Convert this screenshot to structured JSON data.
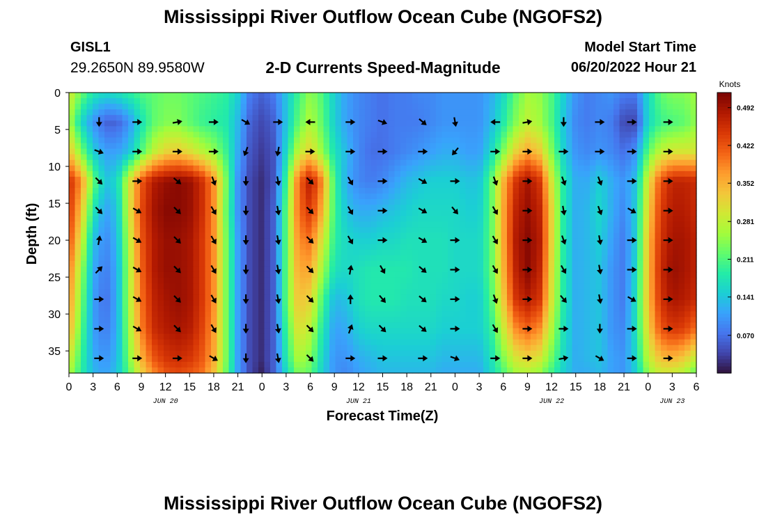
{
  "page": {
    "title": "Mississippi River Outflow Ocean Cube (NGOFS2)",
    "title_repeat": "Mississippi River Outflow Ocean Cube (NGOFS2)"
  },
  "header": {
    "station_id": "GISL1",
    "coordinates": "29.2650N  89.9580W",
    "subtitle": "2-D Currents Speed-Magnitude",
    "start_label": "Model Start Time",
    "start_value": "06/20/2022 Hour 21"
  },
  "chart_data": {
    "type": "heatmap",
    "title": "2-D Currents Speed-Magnitude",
    "xlabel": "Forecast Time(Z)",
    "ylabel": "Depth (ft)",
    "xlim": [
      0,
      78
    ],
    "ylim": [
      0,
      38
    ],
    "y_inverted": true,
    "x_tick_values": [
      0,
      3,
      6,
      9,
      12,
      15,
      18,
      21,
      24,
      27,
      30,
      33,
      36,
      39,
      42,
      45,
      48,
      51,
      54,
      57,
      60,
      63,
      66,
      69,
      72,
      75,
      78
    ],
    "x_tick_labels": [
      "0",
      "3",
      "6",
      "9",
      "12",
      "15",
      "18",
      "21",
      "0",
      "3",
      "6",
      "9",
      "12",
      "15",
      "18",
      "21",
      "0",
      "3",
      "6",
      "9",
      "12",
      "15",
      "18",
      "21",
      "0",
      "3",
      "6"
    ],
    "day_labels": [
      {
        "x": 12,
        "label": "JUN 20"
      },
      {
        "x": 36,
        "label": "JUN 21"
      },
      {
        "x": 60,
        "label": "JUN 22"
      },
      {
        "x": 75,
        "label": "JUN 23"
      }
    ],
    "y_tick_values": [
      0,
      5,
      10,
      15,
      20,
      25,
      30,
      35
    ],
    "y_tick_labels": [
      "0",
      "5",
      "10",
      "15",
      "20",
      "25",
      "30",
      "35"
    ],
    "colorbar": {
      "title": "Knots",
      "min": 0.0,
      "max": 0.52,
      "tick_values": [
        0.07,
        0.141,
        0.211,
        0.281,
        0.352,
        0.422,
        0.492
      ],
      "tick_labels": [
        "0.070",
        "0.141",
        "0.211",
        "0.281",
        "0.352",
        "0.422",
        "0.492"
      ]
    },
    "grid": false,
    "speed_field": {
      "x": [
        0,
        1.5,
        3,
        4.5,
        6,
        7.5,
        9,
        10.5,
        12,
        13.5,
        15,
        16.5,
        18,
        19.5,
        21,
        22.5,
        24,
        25.5,
        27,
        28.5,
        30,
        31.5,
        33,
        34.5,
        36,
        37.5,
        39,
        40.5,
        42,
        43.5,
        45,
        46.5,
        48,
        49.5,
        51,
        52.5,
        54,
        55.5,
        57,
        58.5,
        60,
        61.5,
        63,
        64.5,
        66,
        67.5,
        69,
        70.5,
        72,
        73.5,
        75,
        76.5,
        78
      ],
      "depth": [
        0,
        4,
        8,
        12,
        16,
        20,
        24,
        28,
        32,
        36,
        38
      ],
      "values_knots": [
        [
          0.3,
          0.23,
          0.18,
          0.16,
          0.17,
          0.19,
          0.21,
          0.22,
          0.23,
          0.23,
          0.22,
          0.21,
          0.2,
          0.19,
          0.15,
          0.08,
          0.06,
          0.08,
          0.14,
          0.2,
          0.25,
          0.21,
          0.15,
          0.11,
          0.09,
          0.08,
          0.07,
          0.08,
          0.08,
          0.09,
          0.09,
          0.1,
          0.1,
          0.1,
          0.1,
          0.12,
          0.16,
          0.22,
          0.26,
          0.25,
          0.21,
          0.15,
          0.1,
          0.08,
          0.09,
          0.1,
          0.08,
          0.08,
          0.16,
          0.22,
          0.24,
          0.24,
          0.26
        ],
        [
          0.27,
          0.16,
          0.1,
          0.06,
          0.06,
          0.1,
          0.17,
          0.22,
          0.24,
          0.24,
          0.22,
          0.2,
          0.19,
          0.18,
          0.13,
          0.06,
          0.04,
          0.06,
          0.14,
          0.22,
          0.27,
          0.22,
          0.15,
          0.11,
          0.09,
          0.08,
          0.07,
          0.08,
          0.08,
          0.08,
          0.09,
          0.1,
          0.1,
          0.1,
          0.1,
          0.13,
          0.18,
          0.24,
          0.28,
          0.26,
          0.21,
          0.14,
          0.09,
          0.08,
          0.09,
          0.08,
          0.04,
          0.04,
          0.16,
          0.2,
          0.21,
          0.22,
          0.25
        ],
        [
          0.34,
          0.24,
          0.15,
          0.11,
          0.11,
          0.14,
          0.21,
          0.28,
          0.32,
          0.33,
          0.31,
          0.28,
          0.25,
          0.2,
          0.12,
          0.05,
          0.03,
          0.05,
          0.16,
          0.28,
          0.32,
          0.25,
          0.17,
          0.13,
          0.09,
          0.07,
          0.07,
          0.08,
          0.09,
          0.1,
          0.11,
          0.12,
          0.12,
          0.11,
          0.11,
          0.16,
          0.24,
          0.32,
          0.36,
          0.33,
          0.24,
          0.15,
          0.1,
          0.09,
          0.1,
          0.09,
          0.07,
          0.1,
          0.22,
          0.28,
          0.3,
          0.3,
          0.3
        ],
        [
          0.46,
          0.38,
          0.23,
          0.14,
          0.16,
          0.3,
          0.42,
          0.48,
          0.5,
          0.51,
          0.5,
          0.46,
          0.38,
          0.24,
          0.1,
          0.04,
          0.02,
          0.05,
          0.2,
          0.4,
          0.48,
          0.38,
          0.2,
          0.12,
          0.09,
          0.08,
          0.09,
          0.11,
          0.13,
          0.14,
          0.15,
          0.15,
          0.15,
          0.14,
          0.14,
          0.22,
          0.35,
          0.45,
          0.49,
          0.45,
          0.3,
          0.18,
          0.12,
          0.12,
          0.15,
          0.12,
          0.1,
          0.14,
          0.3,
          0.42,
          0.47,
          0.47,
          0.46
        ],
        [
          0.45,
          0.34,
          0.18,
          0.11,
          0.14,
          0.3,
          0.43,
          0.49,
          0.51,
          0.51,
          0.5,
          0.46,
          0.38,
          0.23,
          0.1,
          0.04,
          0.02,
          0.06,
          0.22,
          0.4,
          0.45,
          0.35,
          0.2,
          0.14,
          0.12,
          0.12,
          0.13,
          0.14,
          0.15,
          0.16,
          0.16,
          0.16,
          0.16,
          0.15,
          0.15,
          0.22,
          0.36,
          0.47,
          0.5,
          0.47,
          0.32,
          0.18,
          0.12,
          0.13,
          0.16,
          0.12,
          0.09,
          0.15,
          0.32,
          0.44,
          0.48,
          0.48,
          0.46
        ],
        [
          0.43,
          0.3,
          0.14,
          0.09,
          0.13,
          0.28,
          0.42,
          0.48,
          0.5,
          0.5,
          0.49,
          0.45,
          0.38,
          0.24,
          0.11,
          0.04,
          0.02,
          0.06,
          0.22,
          0.38,
          0.4,
          0.3,
          0.19,
          0.16,
          0.15,
          0.15,
          0.16,
          0.16,
          0.17,
          0.17,
          0.17,
          0.17,
          0.16,
          0.16,
          0.16,
          0.22,
          0.36,
          0.48,
          0.51,
          0.48,
          0.32,
          0.18,
          0.12,
          0.13,
          0.15,
          0.11,
          0.08,
          0.15,
          0.34,
          0.45,
          0.49,
          0.49,
          0.47
        ],
        [
          0.4,
          0.26,
          0.12,
          0.08,
          0.12,
          0.27,
          0.41,
          0.48,
          0.5,
          0.5,
          0.49,
          0.45,
          0.38,
          0.24,
          0.11,
          0.04,
          0.02,
          0.06,
          0.22,
          0.36,
          0.36,
          0.26,
          0.17,
          0.16,
          0.17,
          0.18,
          0.18,
          0.18,
          0.18,
          0.17,
          0.17,
          0.17,
          0.16,
          0.16,
          0.16,
          0.22,
          0.35,
          0.47,
          0.51,
          0.47,
          0.31,
          0.18,
          0.12,
          0.13,
          0.14,
          0.1,
          0.08,
          0.16,
          0.34,
          0.46,
          0.5,
          0.49,
          0.47
        ],
        [
          0.38,
          0.24,
          0.11,
          0.07,
          0.12,
          0.27,
          0.4,
          0.47,
          0.49,
          0.5,
          0.49,
          0.45,
          0.38,
          0.24,
          0.11,
          0.04,
          0.02,
          0.06,
          0.22,
          0.34,
          0.32,
          0.21,
          0.13,
          0.14,
          0.17,
          0.18,
          0.18,
          0.18,
          0.17,
          0.17,
          0.17,
          0.16,
          0.16,
          0.15,
          0.15,
          0.21,
          0.33,
          0.45,
          0.48,
          0.45,
          0.3,
          0.18,
          0.12,
          0.13,
          0.14,
          0.1,
          0.08,
          0.17,
          0.34,
          0.45,
          0.49,
          0.48,
          0.46
        ],
        [
          0.36,
          0.22,
          0.11,
          0.08,
          0.12,
          0.26,
          0.39,
          0.46,
          0.48,
          0.49,
          0.48,
          0.44,
          0.37,
          0.24,
          0.11,
          0.04,
          0.02,
          0.06,
          0.2,
          0.31,
          0.28,
          0.18,
          0.11,
          0.12,
          0.15,
          0.16,
          0.16,
          0.16,
          0.16,
          0.16,
          0.16,
          0.15,
          0.15,
          0.15,
          0.15,
          0.19,
          0.29,
          0.38,
          0.41,
          0.38,
          0.27,
          0.17,
          0.12,
          0.13,
          0.14,
          0.1,
          0.09,
          0.17,
          0.32,
          0.42,
          0.45,
          0.44,
          0.4
        ],
        [
          0.3,
          0.2,
          0.12,
          0.1,
          0.13,
          0.24,
          0.35,
          0.42,
          0.45,
          0.46,
          0.45,
          0.42,
          0.36,
          0.24,
          0.11,
          0.04,
          0.02,
          0.06,
          0.18,
          0.27,
          0.24,
          0.16,
          0.1,
          0.1,
          0.12,
          0.13,
          0.14,
          0.14,
          0.14,
          0.14,
          0.14,
          0.13,
          0.13,
          0.13,
          0.13,
          0.17,
          0.24,
          0.3,
          0.32,
          0.3,
          0.23,
          0.16,
          0.12,
          0.13,
          0.14,
          0.11,
          0.1,
          0.16,
          0.28,
          0.34,
          0.35,
          0.33,
          0.28
        ],
        [
          0.27,
          0.19,
          0.13,
          0.11,
          0.14,
          0.22,
          0.32,
          0.38,
          0.42,
          0.43,
          0.42,
          0.4,
          0.34,
          0.23,
          0.11,
          0.04,
          0.01,
          0.06,
          0.16,
          0.24,
          0.22,
          0.15,
          0.1,
          0.09,
          0.11,
          0.12,
          0.13,
          0.13,
          0.13,
          0.13,
          0.13,
          0.12,
          0.12,
          0.12,
          0.12,
          0.16,
          0.21,
          0.26,
          0.27,
          0.25,
          0.2,
          0.15,
          0.12,
          0.12,
          0.13,
          0.11,
          0.1,
          0.15,
          0.25,
          0.29,
          0.29,
          0.27,
          0.22
        ]
      ]
    },
    "vectors": {
      "x": [
        3.75,
        8.5,
        13.5,
        18,
        22,
        26,
        30,
        35,
        39,
        44,
        48,
        53,
        57,
        61.5,
        66,
        70,
        74.5
      ],
      "depth": [
        4,
        8,
        12,
        16,
        20,
        24,
        28,
        32,
        36
      ],
      "direction_deg_cw_from_east": [
        [
          90,
          0,
          -10,
          0,
          30,
          0,
          180,
          0,
          20,
          40,
          80,
          180,
          -10,
          90,
          0,
          0,
          0
        ],
        [
          20,
          0,
          0,
          0,
          110,
          100,
          0,
          0,
          0,
          0,
          130,
          0,
          0,
          0,
          0,
          0,
          0
        ],
        [
          45,
          0,
          40,
          70,
          90,
          80,
          45,
          60,
          0,
          30,
          0,
          70,
          0,
          70,
          70,
          0,
          0
        ],
        [
          45,
          30,
          45,
          60,
          90,
          80,
          45,
          60,
          0,
          30,
          50,
          60,
          0,
          80,
          70,
          30,
          0
        ],
        [
          -80,
          30,
          45,
          60,
          90,
          80,
          45,
          60,
          0,
          30,
          0,
          60,
          0,
          70,
          80,
          0,
          0
        ],
        [
          -45,
          30,
          45,
          60,
          90,
          80,
          45,
          -80,
          60,
          40,
          0,
          60,
          0,
          60,
          80,
          0,
          0
        ],
        [
          0,
          30,
          45,
          60,
          90,
          80,
          45,
          -90,
          50,
          40,
          0,
          70,
          0,
          50,
          80,
          30,
          0
        ],
        [
          0,
          30,
          45,
          60,
          90,
          80,
          45,
          -70,
          45,
          40,
          0,
          60,
          0,
          0,
          90,
          0,
          0
        ],
        [
          0,
          0,
          0,
          30,
          90,
          80,
          45,
          0,
          0,
          0,
          20,
          0,
          0,
          -10,
          30,
          0,
          0
        ]
      ]
    }
  },
  "style": {
    "background": "#ffffff",
    "axis_color": "#000000",
    "arrow_color": "#000000",
    "colormap": [
      "#30123b",
      "#4145ab",
      "#4675ed",
      "#39a2fc",
      "#1bcfd4",
      "#24eca6",
      "#61fc6c",
      "#a4fc3b",
      "#d1e834",
      "#f3c63a",
      "#fe9b2d",
      "#f36315",
      "#d93806",
      "#b11901",
      "#7a0403"
    ]
  }
}
